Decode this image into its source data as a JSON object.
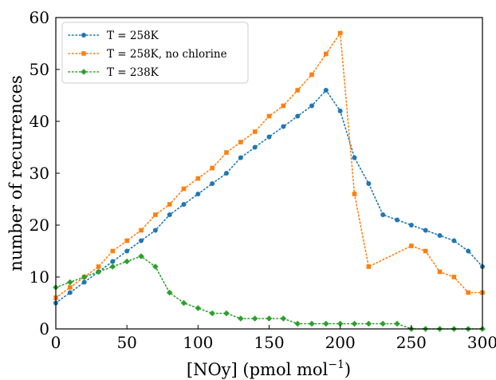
{
  "chart_data": {
    "type": "line",
    "xlabel_main": "[NOy] (pmol mol",
    "xlabel_sup": "−1",
    "xlabel_close": ")",
    "ylabel": "number of recurrences",
    "xlim": [
      0,
      300
    ],
    "ylim": [
      0,
      60
    ],
    "xticks": [
      0,
      50,
      100,
      150,
      200,
      250,
      300
    ],
    "yticks": [
      0,
      10,
      20,
      30,
      40,
      50,
      60
    ],
    "grid": false,
    "legend_position": "top-left",
    "x": [
      0,
      10,
      20,
      30,
      40,
      50,
      60,
      70,
      80,
      90,
      100,
      110,
      120,
      130,
      140,
      150,
      160,
      170,
      180,
      190,
      200,
      210,
      220,
      230,
      240,
      250,
      260,
      270,
      280,
      290,
      300
    ],
    "series": [
      {
        "name": "T = 258K",
        "color": "#1f77b4",
        "marker": "circle",
        "values": [
          5,
          7,
          9,
          11,
          13,
          15,
          17,
          19,
          22,
          24,
          26,
          28,
          30,
          33,
          35,
          37,
          39,
          41,
          43,
          46,
          42,
          33,
          28,
          22,
          21,
          20,
          19,
          18,
          17,
          15,
          12
        ]
      },
      {
        "name": "T = 258K, no chlorine",
        "color": "#ff7f0e",
        "marker": "square",
        "values": [
          6,
          8,
          10,
          12,
          15,
          17,
          19,
          22,
          24,
          27,
          29,
          31,
          34,
          36,
          38,
          41,
          43,
          46,
          49,
          53,
          57,
          26,
          12,
          null,
          null,
          16,
          15,
          11,
          10,
          7,
          7
        ]
      },
      {
        "name": "T = 238K",
        "color": "#2ca02c",
        "marker": "diamond",
        "values": [
          8,
          9,
          10,
          11,
          12,
          13,
          14,
          12,
          7,
          5,
          4,
          3,
          3,
          2,
          2,
          2,
          2,
          1,
          1,
          1,
          1,
          1,
          1,
          1,
          1,
          0,
          0,
          0,
          0,
          0,
          0
        ]
      }
    ]
  }
}
